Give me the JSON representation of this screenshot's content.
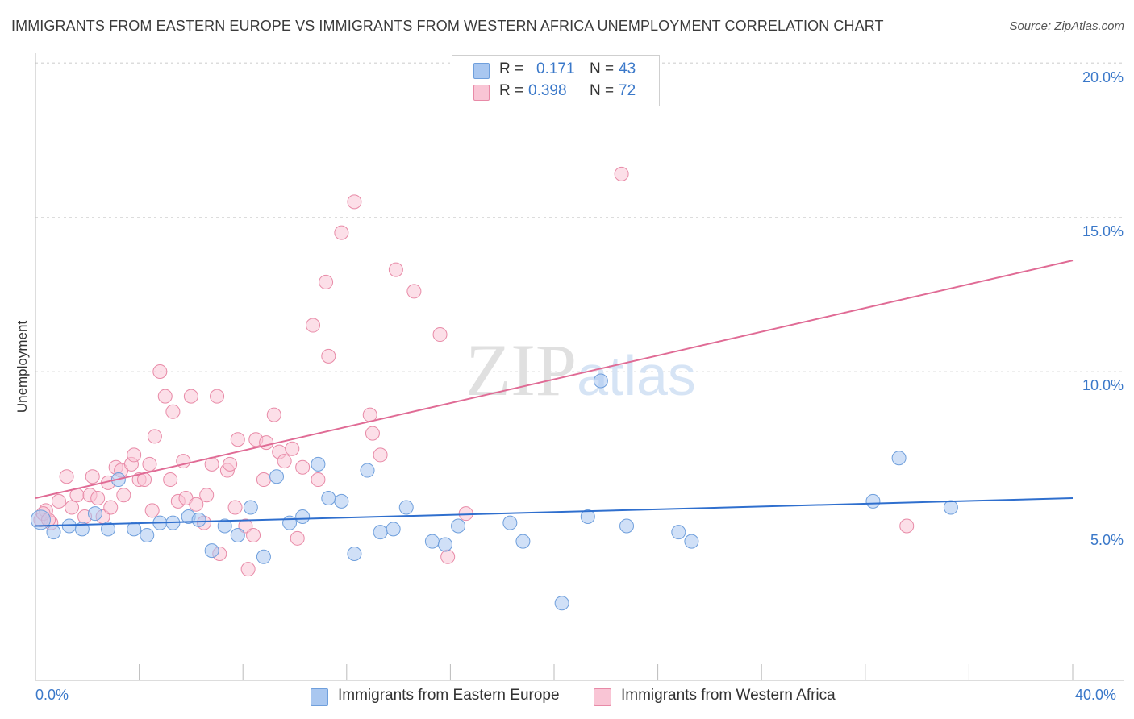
{
  "title": "IMMIGRANTS FROM EASTERN EUROPE VS IMMIGRANTS FROM WESTERN AFRICA UNEMPLOYMENT CORRELATION CHART",
  "source": "Source: ZipAtlas.com",
  "watermark": "ZIPatlas",
  "legend": {
    "rows": [
      {
        "r_label": "R =",
        "r_value": "0.171",
        "n_label": "N =",
        "n_value": "43",
        "color": "#a9c7f0",
        "border": "#6f9fdc"
      },
      {
        "r_label": "R =",
        "r_value": "0.398",
        "n_label": "N =",
        "n_value": "72",
        "color": "#f9c5d5",
        "border": "#e88aa7"
      }
    ]
  },
  "chart_data": {
    "type": "scatter",
    "title": "IMMIGRANTS FROM EASTERN EUROPE VS IMMIGRANTS FROM WESTERN AFRICA UNEMPLOYMENT CORRELATION CHART",
    "xlabel": "",
    "ylabel": "Unemployment",
    "xlim": [
      0,
      40
    ],
    "ylim": [
      0,
      20
    ],
    "x_tick_labels": [
      "0.0%",
      "40.0%"
    ],
    "y_ticks": [
      5,
      10,
      15,
      20
    ],
    "y_tick_labels": [
      "5.0%",
      "10.0%",
      "15.0%",
      "20.0%"
    ],
    "grid": "horizontal dashed",
    "legend_position": "top-center and bottom",
    "series": [
      {
        "name": "Immigrants from Eastern Europe",
        "color": "#6f9fdc",
        "fill": "#a9c7f0",
        "trend": {
          "x1": 0,
          "y1": 5.0,
          "x2": 40,
          "y2": 5.9,
          "color": "#2f6fce"
        },
        "points": [
          [
            0.2,
            5.2
          ],
          [
            0.7,
            4.8
          ],
          [
            1.3,
            5.0
          ],
          [
            1.8,
            4.9
          ],
          [
            2.3,
            5.4
          ],
          [
            2.8,
            4.9
          ],
          [
            3.2,
            6.5
          ],
          [
            3.8,
            4.9
          ],
          [
            4.3,
            4.7
          ],
          [
            4.8,
            5.1
          ],
          [
            5.3,
            5.1
          ],
          [
            5.9,
            5.3
          ],
          [
            6.3,
            5.2
          ],
          [
            6.8,
            4.2
          ],
          [
            7.3,
            5.0
          ],
          [
            7.8,
            4.7
          ],
          [
            8.3,
            5.6
          ],
          [
            8.8,
            4.0
          ],
          [
            9.3,
            6.6
          ],
          [
            9.8,
            5.1
          ],
          [
            10.3,
            5.3
          ],
          [
            10.9,
            7.0
          ],
          [
            11.3,
            5.9
          ],
          [
            11.8,
            5.8
          ],
          [
            12.3,
            4.1
          ],
          [
            12.8,
            6.8
          ],
          [
            13.3,
            4.8
          ],
          [
            13.8,
            4.9
          ],
          [
            14.3,
            5.6
          ],
          [
            15.3,
            4.5
          ],
          [
            15.8,
            4.4
          ],
          [
            16.3,
            5.0
          ],
          [
            18.3,
            5.1
          ],
          [
            18.8,
            4.5
          ],
          [
            20.3,
            2.5
          ],
          [
            21.3,
            5.3
          ],
          [
            21.8,
            9.7
          ],
          [
            22.8,
            5.0
          ],
          [
            24.8,
            4.8
          ],
          [
            25.3,
            4.5
          ],
          [
            32.3,
            5.8
          ],
          [
            33.3,
            7.2
          ],
          [
            35.3,
            5.6
          ]
        ]
      },
      {
        "name": "Immigrants from Western Africa",
        "color": "#e88aa7",
        "fill": "#f9c5d5",
        "trend": {
          "x1": 0,
          "y1": 5.9,
          "x2": 40,
          "y2": 13.6,
          "color": "#e06b95"
        },
        "points": [
          [
            0.2,
            5.2
          ],
          [
            0.4,
            5.5
          ],
          [
            0.6,
            5.1
          ],
          [
            0.9,
            5.8
          ],
          [
            1.2,
            6.6
          ],
          [
            1.4,
            5.6
          ],
          [
            1.6,
            6.0
          ],
          [
            1.9,
            5.3
          ],
          [
            2.1,
            6.0
          ],
          [
            2.2,
            6.6
          ],
          [
            2.4,
            5.9
          ],
          [
            2.6,
            5.3
          ],
          [
            2.8,
            6.4
          ],
          [
            2.9,
            5.6
          ],
          [
            3.1,
            6.9
          ],
          [
            3.3,
            6.8
          ],
          [
            3.4,
            6.0
          ],
          [
            3.7,
            7.0
          ],
          [
            3.8,
            7.3
          ],
          [
            4.0,
            6.5
          ],
          [
            4.2,
            6.5
          ],
          [
            4.4,
            7.0
          ],
          [
            4.5,
            5.5
          ],
          [
            4.6,
            7.9
          ],
          [
            4.8,
            10.0
          ],
          [
            5.0,
            9.2
          ],
          [
            5.2,
            6.5
          ],
          [
            5.3,
            8.7
          ],
          [
            5.5,
            5.8
          ],
          [
            5.7,
            7.1
          ],
          [
            5.8,
            5.9
          ],
          [
            6.0,
            9.2
          ],
          [
            6.2,
            5.7
          ],
          [
            6.5,
            5.1
          ],
          [
            6.6,
            6.0
          ],
          [
            6.8,
            7.0
          ],
          [
            7.0,
            9.2
          ],
          [
            7.1,
            4.1
          ],
          [
            7.4,
            6.8
          ],
          [
            7.5,
            7.0
          ],
          [
            7.7,
            5.6
          ],
          [
            7.8,
            7.8
          ],
          [
            8.1,
            5.0
          ],
          [
            8.2,
            3.6
          ],
          [
            8.4,
            4.7
          ],
          [
            8.5,
            7.8
          ],
          [
            8.8,
            6.5
          ],
          [
            8.9,
            7.7
          ],
          [
            9.2,
            8.6
          ],
          [
            9.4,
            7.4
          ],
          [
            9.6,
            7.1
          ],
          [
            9.9,
            7.5
          ],
          [
            10.1,
            4.6
          ],
          [
            10.3,
            6.9
          ],
          [
            10.7,
            11.5
          ],
          [
            10.9,
            6.5
          ],
          [
            11.2,
            12.9
          ],
          [
            11.3,
            10.5
          ],
          [
            11.8,
            14.5
          ],
          [
            12.3,
            15.5
          ],
          [
            12.9,
            8.6
          ],
          [
            13.0,
            8.0
          ],
          [
            13.3,
            7.3
          ],
          [
            13.9,
            13.3
          ],
          [
            14.6,
            12.6
          ],
          [
            15.6,
            11.2
          ],
          [
            15.9,
            4.0
          ],
          [
            16.6,
            5.4
          ],
          [
            22.6,
            16.4
          ],
          [
            33.6,
            5.0
          ],
          [
            0.3,
            5.4
          ],
          [
            0.5,
            5.2
          ]
        ]
      }
    ]
  },
  "bottom_legend": {
    "items": [
      {
        "label": "Immigrants from Eastern Europe",
        "color": "#a9c7f0",
        "border": "#6f9fdc"
      },
      {
        "label": "Immigrants from Western Africa",
        "color": "#f9c5d5",
        "border": "#e88aa7"
      }
    ]
  }
}
